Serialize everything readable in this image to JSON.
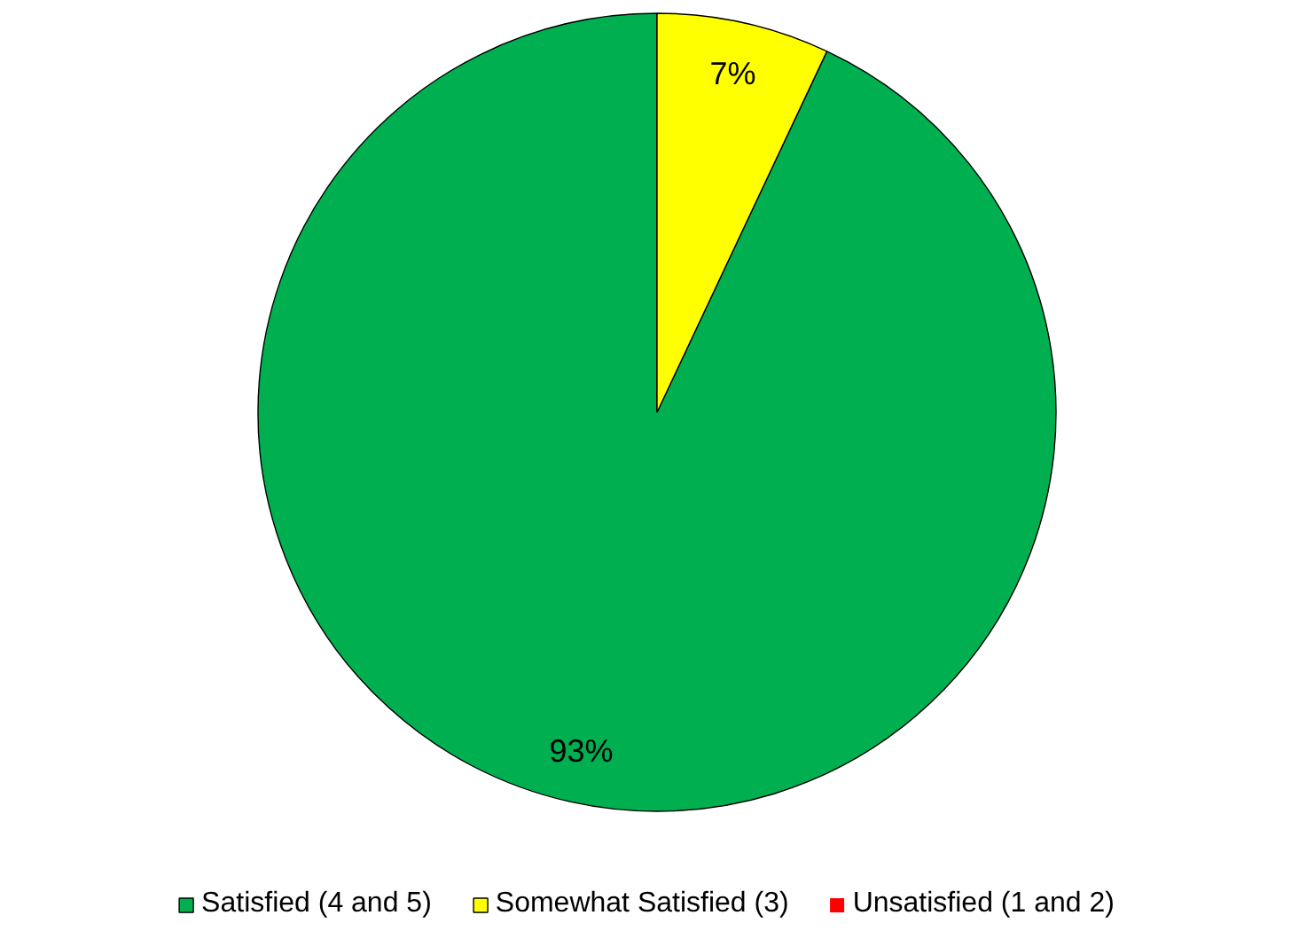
{
  "chart_data": {
    "type": "pie",
    "categories": [
      "Satisfied (4 and 5)",
      "Somewhat Satisfied (3)",
      "Unsatisfied (1 and 2)"
    ],
    "values": [
      93,
      7,
      0
    ],
    "colors": [
      "#00b050",
      "#ffff00",
      "#ff0000"
    ],
    "value_labels": [
      "93%",
      "7%",
      null
    ],
    "legend": "bottom"
  }
}
